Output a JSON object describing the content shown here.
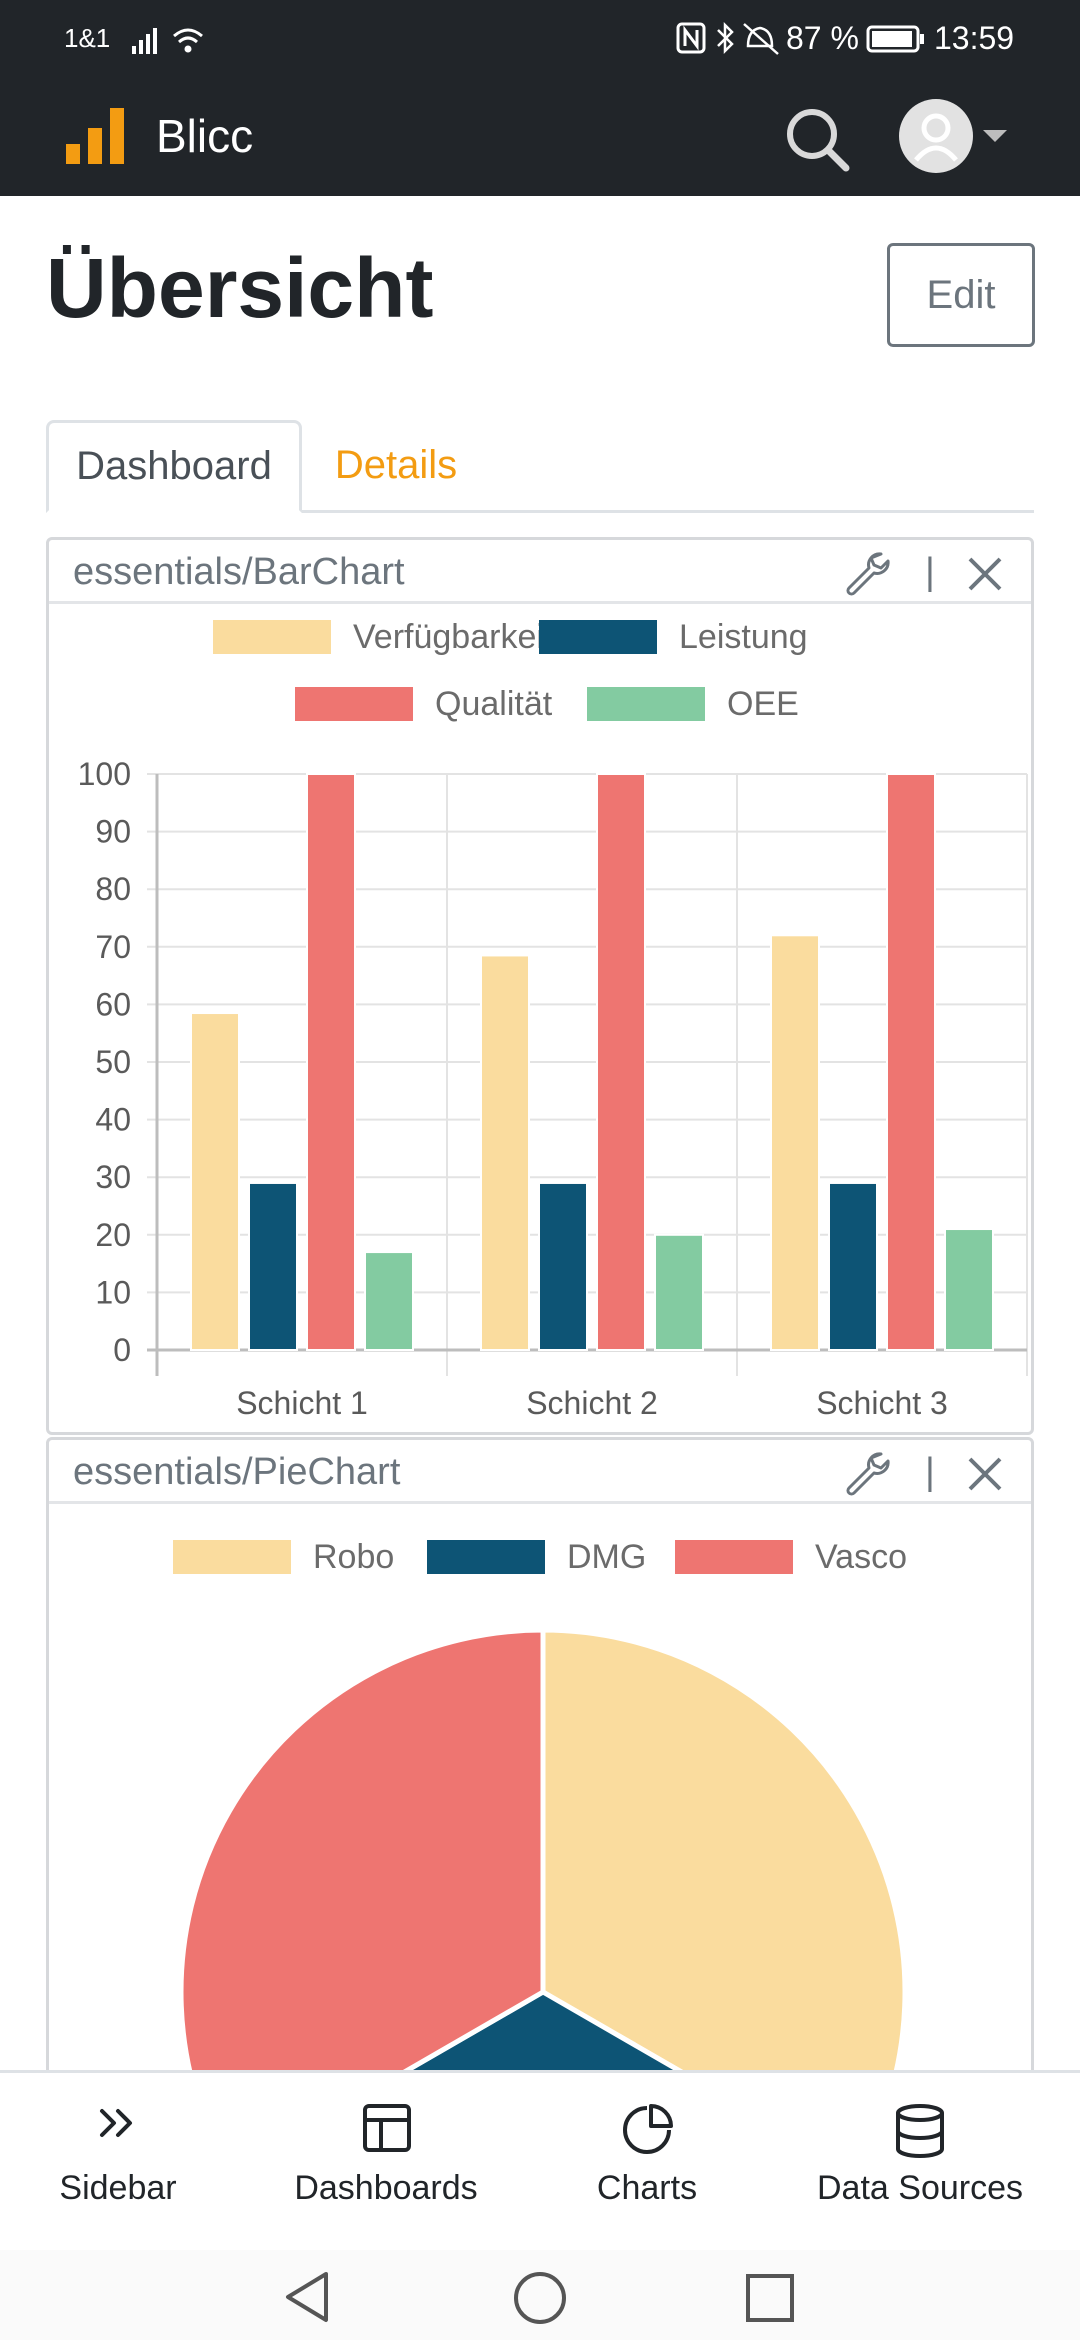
{
  "status_bar": {
    "carrier": "1&1",
    "battery": "87 %",
    "time": "13:59"
  },
  "app": {
    "title": "Blicc",
    "icons": [
      "bar-chart-logo-icon",
      "search-icon",
      "user-avatar-icon",
      "caret-down-icon"
    ]
  },
  "page": {
    "title": "Übersicht",
    "edit_label": "Edit"
  },
  "tabs": [
    {
      "label": "Dashboard",
      "active": true
    },
    {
      "label": "Details",
      "active": false
    }
  ],
  "colors": {
    "accent": "#f39c12",
    "dark": "#212529",
    "verfuegbarkeit": "#fadc9e",
    "leistung": "#0d5475",
    "qualitaet": "#ee7571",
    "oee": "#83cba1"
  },
  "cards": [
    {
      "title": "essentials/BarChart",
      "separator": "|",
      "icons": [
        "wrench-icon",
        "close-icon"
      ]
    },
    {
      "title": "essentials/PieChart",
      "separator": "|",
      "icons": [
        "wrench-icon",
        "close-icon"
      ]
    }
  ],
  "chart_data": [
    {
      "type": "bar",
      "categories": [
        "Schicht 1",
        "Schicht 2",
        "Schicht 3"
      ],
      "series": [
        {
          "name": "Verfügbarkeit",
          "color": "#fadc9e",
          "values": [
            58.5,
            68.5,
            72
          ]
        },
        {
          "name": "Leistung",
          "color": "#0d5475",
          "values": [
            29,
            29,
            29
          ]
        },
        {
          "name": "Qualität",
          "color": "#ee7571",
          "values": [
            100,
            100,
            100
          ]
        },
        {
          "name": "OEE",
          "color": "#83cba1",
          "values": [
            17,
            20,
            21
          ]
        }
      ],
      "yticks": [
        "0",
        "10",
        "20",
        "30",
        "40",
        "50",
        "60",
        "70",
        "80",
        "90",
        "100"
      ],
      "ylim": [
        0,
        100
      ],
      "grid": true,
      "legend": "top"
    },
    {
      "type": "pie",
      "labels": [
        "Robo",
        "DMG",
        "Vasco"
      ],
      "values": [
        1,
        1,
        1
      ],
      "colors": [
        "#fadc9e",
        "#0d5475",
        "#ee7571"
      ],
      "legend": "top"
    }
  ],
  "bottom_nav": [
    {
      "label": "Sidebar",
      "icon": "double-chevron-right-icon"
    },
    {
      "label": "Dashboards",
      "icon": "layout-icon"
    },
    {
      "label": "Charts",
      "icon": "pie-chart-icon"
    },
    {
      "label": "Data Sources",
      "icon": "database-icon"
    }
  ],
  "system_nav": [
    "back-icon",
    "home-icon",
    "recents-icon"
  ]
}
